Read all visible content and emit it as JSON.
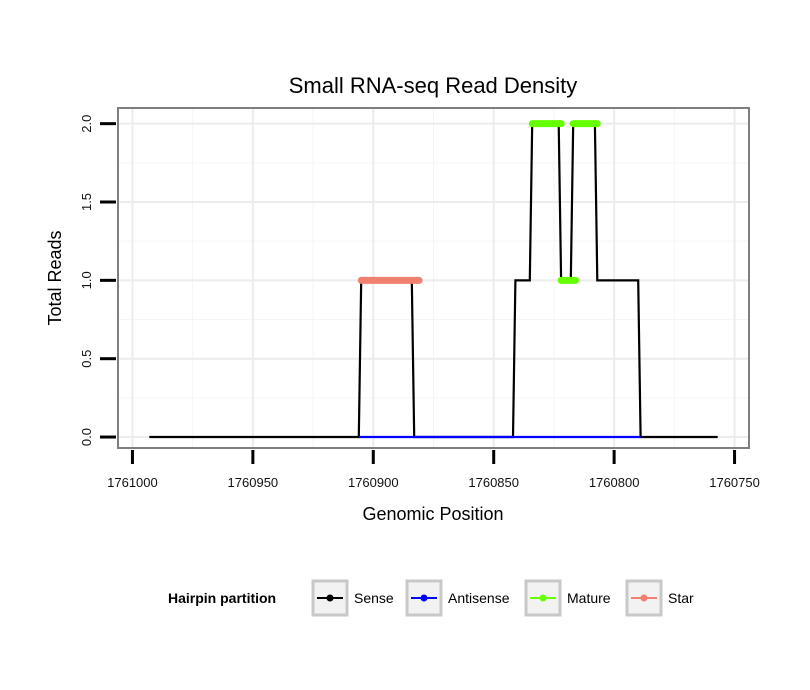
{
  "chart_data": {
    "type": "line",
    "title": "Small RNA-seq Read Density",
    "xlabel": "Genomic Position",
    "ylabel": "Total Reads",
    "xlim": [
      1761006,
      1760744
    ],
    "ylim": [
      -0.07,
      2.1
    ],
    "x_reversed": true,
    "grid": true,
    "x_ticks": [
      1761000,
      1760950,
      1760900,
      1760850,
      1760800,
      1760750
    ],
    "x_tick_labels": [
      "1761000",
      "1760950",
      "1760900",
      "1760850",
      "1760800",
      "1760750"
    ],
    "y_ticks": [
      0.0,
      0.5,
      1.0,
      1.5,
      2.0
    ],
    "y_tick_labels": [
      "0.0",
      "0.5",
      "1.0",
      "1.5",
      "2.0"
    ],
    "series": [
      {
        "name": "Sense",
        "color": "#000000",
        "style": "line",
        "points": [
          [
            1760993,
            0
          ],
          [
            1760906,
            0
          ],
          [
            1760905,
            1
          ],
          [
            1760884,
            1
          ],
          [
            1760883,
            0
          ],
          [
            1760842,
            0
          ],
          [
            1760841,
            1
          ],
          [
            1760835,
            1
          ],
          [
            1760834,
            2
          ],
          [
            1760823,
            2
          ],
          [
            1760822,
            1
          ],
          [
            1760818,
            1
          ],
          [
            1760817,
            2
          ],
          [
            1760808,
            2
          ],
          [
            1760807,
            1
          ],
          [
            1760790,
            1
          ],
          [
            1760789,
            0
          ],
          [
            1760757,
            0
          ]
        ]
      },
      {
        "name": "Antisense",
        "color": "#0000ff",
        "style": "line",
        "points": [
          [
            1760906,
            0
          ],
          [
            1760883,
            0
          ],
          [
            1760842,
            0
          ],
          [
            1760789,
            0
          ]
        ]
      },
      {
        "name": "Mature",
        "color": "#66ff00",
        "style": "thick",
        "segments": [
          [
            [
              1760834,
              2
            ],
            [
              1760822,
              2
            ]
          ],
          [
            [
              1760822,
              1
            ],
            [
              1760816,
              1
            ]
          ],
          [
            [
              1760817,
              2
            ],
            [
              1760807,
              2
            ]
          ]
        ]
      },
      {
        "name": "Star",
        "color": "#f08070",
        "style": "thick",
        "segments": [
          [
            [
              1760905,
              1
            ],
            [
              1760881,
              1
            ]
          ]
        ]
      }
    ],
    "legend": {
      "title": "Hairpin partition",
      "position": "bottom",
      "entries": [
        {
          "label": "Sense",
          "color": "#000000"
        },
        {
          "label": "Antisense",
          "color": "#0000ff"
        },
        {
          "label": "Mature",
          "color": "#66ff00"
        },
        {
          "label": "Star",
          "color": "#f08070"
        }
      ]
    }
  }
}
